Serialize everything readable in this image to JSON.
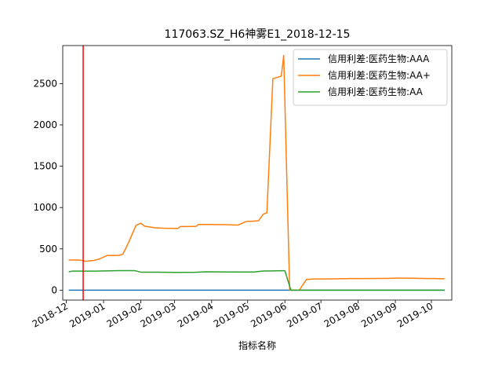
{
  "chart_data": {
    "type": "line",
    "title": "117063.SZ_H6神雾E1_2018-12-15",
    "xlabel": "指标名称",
    "ylabel": "",
    "x_axis_type": "date",
    "xlim": [
      "2018-11-28",
      "2019-10-18"
    ],
    "ylim": [
      -120,
      2960
    ],
    "x_ticks": [
      "2018-12",
      "2019-01",
      "2019-02",
      "2019-03",
      "2019-04",
      "2019-05",
      "2019-06",
      "2019-07",
      "2019-08",
      "2019-09",
      "2019-10"
    ],
    "x_tick_dates": [
      "2018-12-01",
      "2019-01-01",
      "2019-02-01",
      "2019-03-01",
      "2019-04-01",
      "2019-05-01",
      "2019-06-01",
      "2019-07-01",
      "2019-08-01",
      "2019-09-01",
      "2019-10-01"
    ],
    "y_ticks": [
      "0",
      "500",
      "1000",
      "1500",
      "2000",
      "2500"
    ],
    "y_tick_values": [
      0,
      500,
      1000,
      1500,
      2000,
      2500
    ],
    "grid": false,
    "legend_position": "top-right",
    "vertical_marker": {
      "date": "2018-12-15",
      "color": "#ff0000"
    },
    "series": [
      {
        "name": "信用利差:医药生物:AAA",
        "color": "#1f77b4",
        "points": [
          [
            "2018-12-03",
            0
          ],
          [
            "2019-06-06",
            0
          ],
          [
            "2019-10-12",
            0
          ]
        ]
      },
      {
        "name": "信用利差:医药生物:AA+",
        "color": "#ff7f0e",
        "points": [
          [
            "2018-12-03",
            365
          ],
          [
            "2018-12-12",
            365
          ],
          [
            "2018-12-17",
            350
          ],
          [
            "2018-12-24",
            360
          ],
          [
            "2018-12-28",
            375
          ],
          [
            "2019-01-04",
            420
          ],
          [
            "2019-01-10",
            420
          ],
          [
            "2019-01-14",
            422
          ],
          [
            "2019-01-17",
            435
          ],
          [
            "2019-01-21",
            550
          ],
          [
            "2019-01-28",
            785
          ],
          [
            "2019-02-01",
            810
          ],
          [
            "2019-02-04",
            775
          ],
          [
            "2019-02-13",
            755
          ],
          [
            "2019-02-20",
            750
          ],
          [
            "2019-02-28",
            748
          ],
          [
            "2019-03-04",
            748
          ],
          [
            "2019-03-06",
            770
          ],
          [
            "2019-03-12",
            770
          ],
          [
            "2019-03-19",
            772
          ],
          [
            "2019-03-21",
            795
          ],
          [
            "2019-04-01",
            795
          ],
          [
            "2019-04-12",
            793
          ],
          [
            "2019-04-23",
            788
          ],
          [
            "2019-04-30",
            832
          ],
          [
            "2019-05-06",
            835
          ],
          [
            "2019-05-10",
            840
          ],
          [
            "2019-05-14",
            920
          ],
          [
            "2019-05-17",
            935
          ],
          [
            "2019-05-22",
            2560
          ],
          [
            "2019-05-29",
            2590
          ],
          [
            "2019-05-31",
            2840
          ],
          [
            "2019-06-05",
            0
          ],
          [
            "2019-06-13",
            0
          ],
          [
            "2019-06-19",
            130
          ],
          [
            "2019-06-25",
            135
          ],
          [
            "2019-07-05",
            135
          ],
          [
            "2019-07-15",
            138
          ],
          [
            "2019-07-25",
            140
          ],
          [
            "2019-08-05",
            140
          ],
          [
            "2019-08-15",
            142
          ],
          [
            "2019-08-26",
            143
          ],
          [
            "2019-09-03",
            146
          ],
          [
            "2019-09-13",
            145
          ],
          [
            "2019-09-24",
            142
          ],
          [
            "2019-10-04",
            140
          ],
          [
            "2019-10-12",
            138
          ]
        ]
      },
      {
        "name": "信用利差:医药生物:AA",
        "color": "#2ca02c",
        "points": [
          [
            "2018-12-03",
            222
          ],
          [
            "2018-12-06",
            230
          ],
          [
            "2018-12-27",
            231
          ],
          [
            "2019-01-10",
            235
          ],
          [
            "2019-01-14",
            236
          ],
          [
            "2019-01-27",
            236
          ],
          [
            "2019-02-01",
            218
          ],
          [
            "2019-02-14",
            218
          ],
          [
            "2019-03-04",
            215
          ],
          [
            "2019-03-18",
            216
          ],
          [
            "2019-03-27",
            222
          ],
          [
            "2019-04-20",
            220
          ],
          [
            "2019-05-06",
            220
          ],
          [
            "2019-05-14",
            232
          ],
          [
            "2019-05-31",
            235
          ],
          [
            "2019-06-01",
            235
          ],
          [
            "2019-06-06",
            0
          ],
          [
            "2019-06-30",
            0
          ],
          [
            "2019-10-12",
            0
          ]
        ]
      }
    ]
  }
}
